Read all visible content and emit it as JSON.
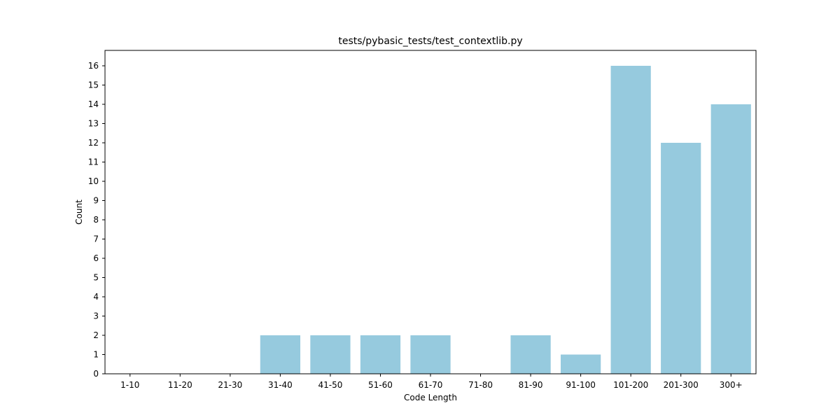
{
  "chart_data": {
    "type": "bar",
    "title": "tests/pybasic_tests/test_contextlib.py",
    "xlabel": "Code Length",
    "ylabel": "Count",
    "categories": [
      "1-10",
      "11-20",
      "21-30",
      "31-40",
      "41-50",
      "51-60",
      "61-70",
      "71-80",
      "81-90",
      "91-100",
      "101-200",
      "201-300",
      "300+"
    ],
    "values": [
      0,
      0,
      0,
      2,
      2,
      2,
      2,
      0,
      2,
      1,
      16,
      12,
      14
    ],
    "ylim": [
      0,
      16.8
    ],
    "yticks": [
      0,
      1,
      2,
      3,
      4,
      5,
      6,
      7,
      8,
      9,
      10,
      11,
      12,
      13,
      14,
      15,
      16
    ],
    "bar_color": "#96cade",
    "grid": false,
    "legend": "none"
  }
}
